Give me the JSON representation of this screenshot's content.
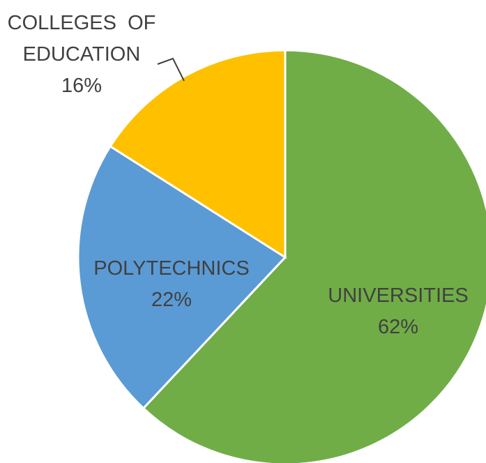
{
  "chart_data": {
    "type": "pie",
    "title": "",
    "categories": [
      "UNIVERSITIES",
      "POLYTECHNICS",
      "COLLEGES OF EDUCATION"
    ],
    "values": [
      62,
      22,
      16
    ],
    "series": [
      {
        "values": [
          62,
          22,
          16
        ]
      }
    ],
    "labels": [
      {
        "name_lines": [
          "UNIVERSITIES"
        ],
        "value_text": "62%"
      },
      {
        "name_lines": [
          "POLYTECHNICS"
        ],
        "value_text": "22%"
      },
      {
        "name_lines": [
          "COLLEGES  OF",
          "EDUCATION"
        ],
        "value_text": "16%"
      }
    ],
    "colors": [
      "#70AD47",
      "#5B9BD5",
      "#FFC000"
    ],
    "start_angle_deg": 0,
    "direction": "clockwise",
    "legend": "none",
    "data_labels": "category name and percentage",
    "leader_line": "colleges of education"
  }
}
